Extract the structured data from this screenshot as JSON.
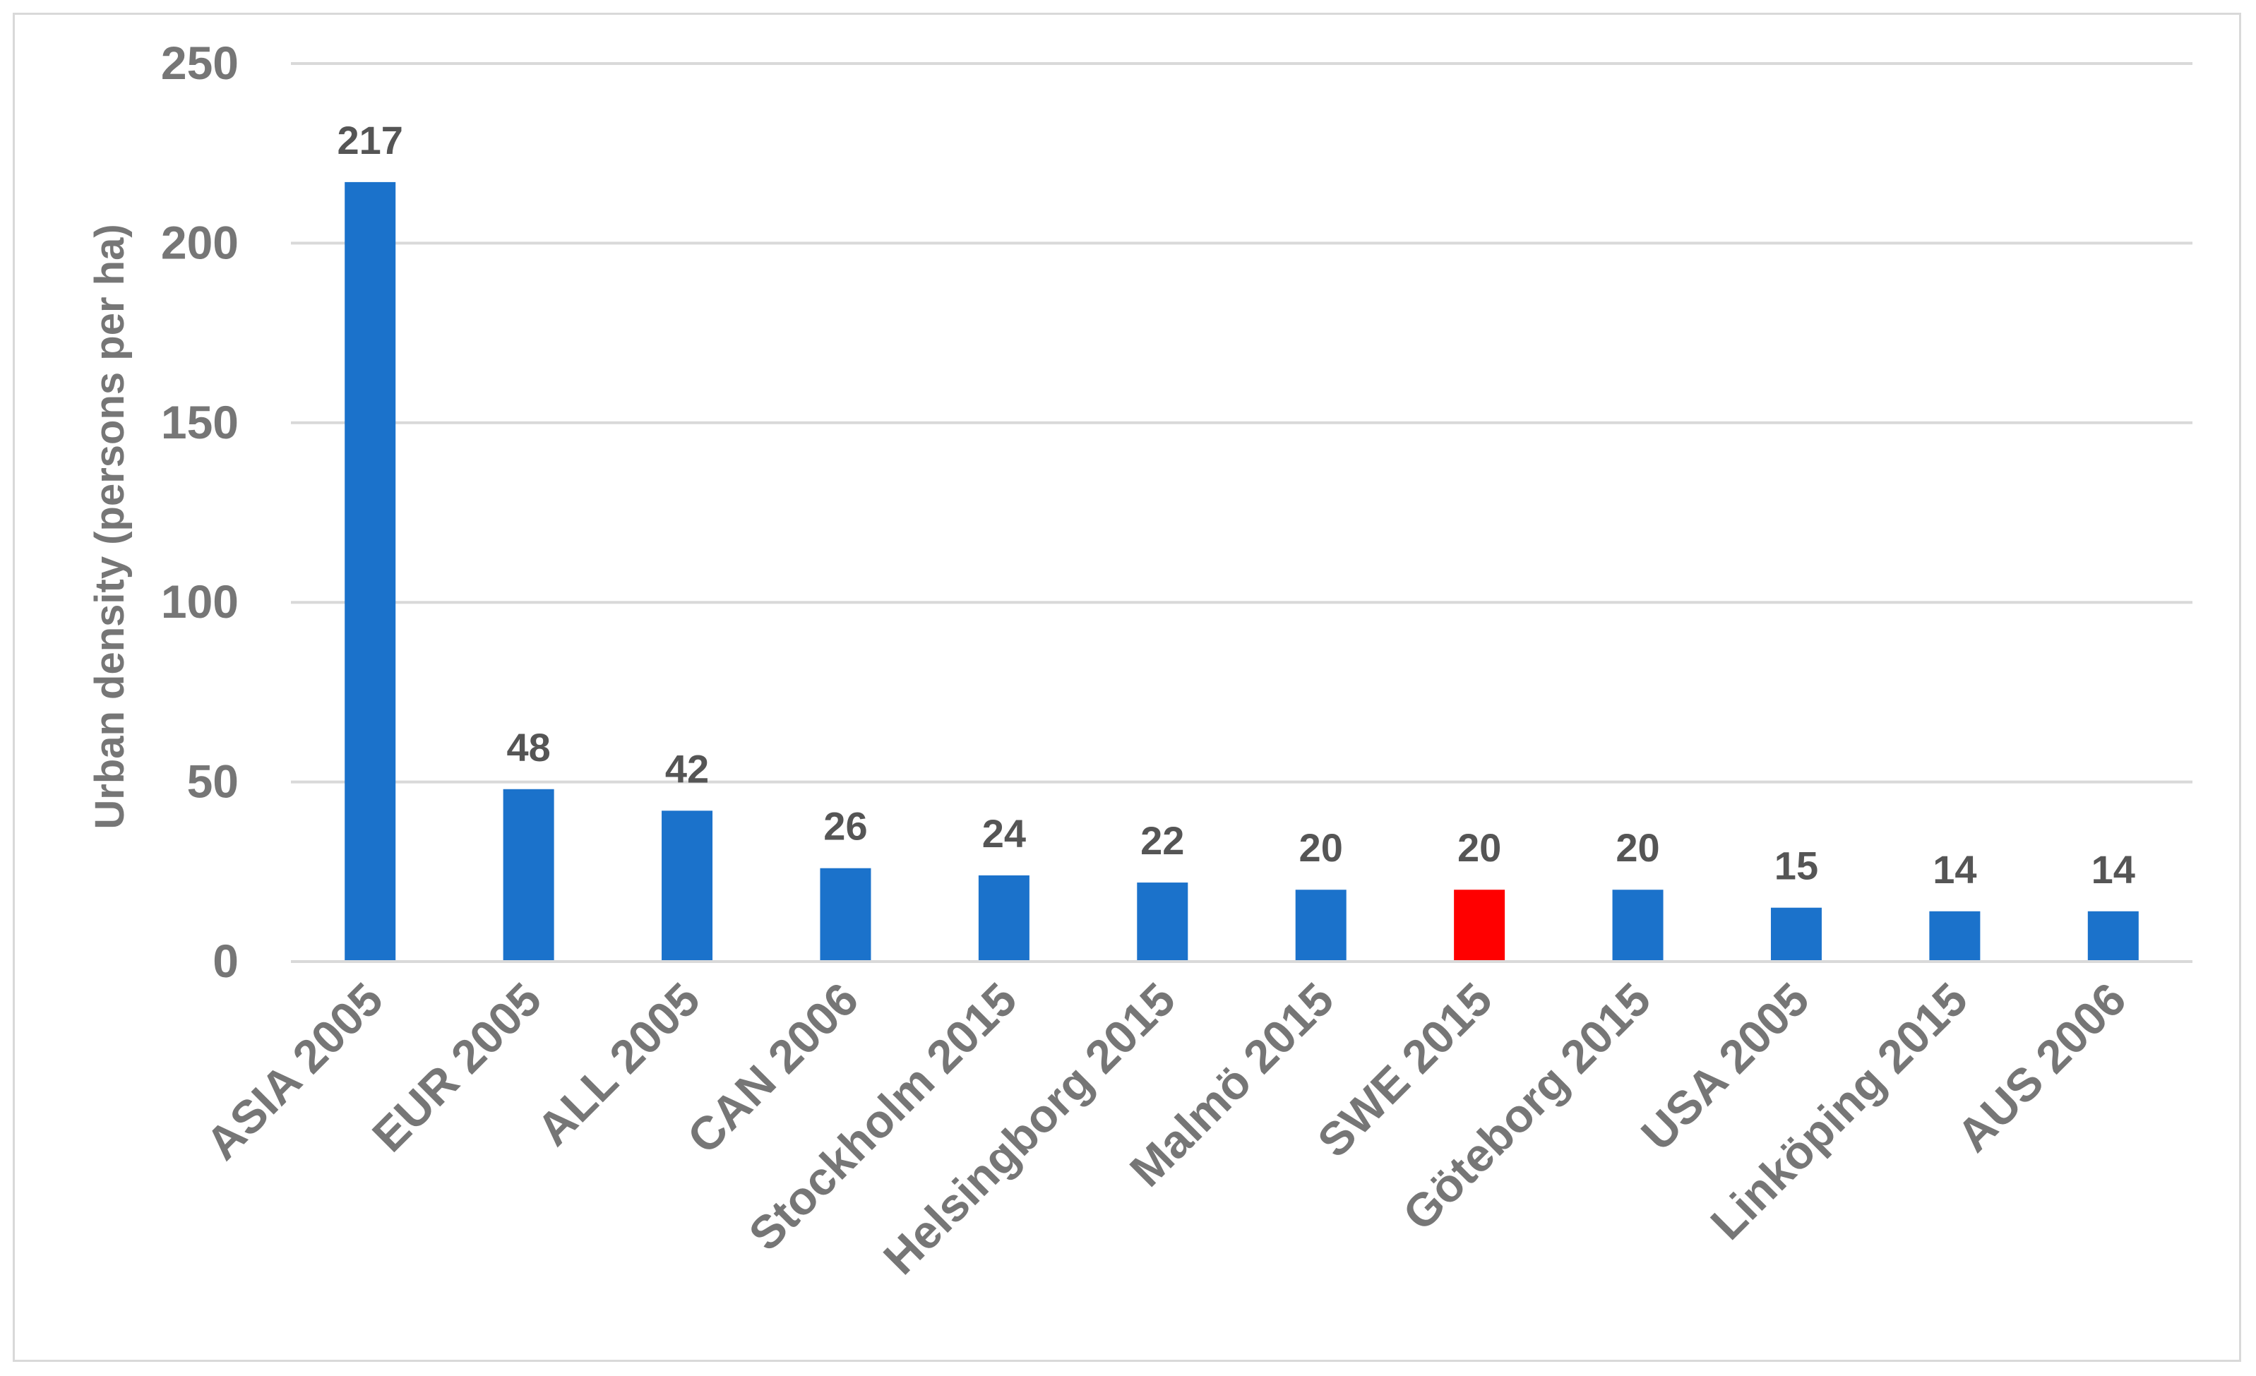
{
  "chart_data": {
    "type": "bar",
    "title": "",
    "xlabel": "",
    "ylabel": "Urban density (persons per ha)",
    "ylim": [
      0,
      250
    ],
    "yticks": [
      0,
      50,
      100,
      150,
      200,
      250
    ],
    "grid": true,
    "legend": "none",
    "categories": [
      "ASIA 2005",
      "EUR 2005",
      "ALL 2005",
      "CAN 2006",
      "Stockholm 2015",
      "Helsingborg 2015",
      "Malmö 2015",
      "SWE 2015",
      "Göteborg 2015",
      "USA 2005",
      "Linköping 2015",
      "AUS 2006"
    ],
    "values": [
      217,
      48,
      42,
      26,
      24,
      22,
      20,
      20,
      20,
      15,
      14,
      14
    ],
    "data_labels": [
      "217",
      "48",
      "42",
      "26",
      "24",
      "22",
      "20",
      "20",
      "20",
      "15",
      "14",
      "14"
    ],
    "bar_color": "#1b72cb",
    "highlight_color": "#ff0000",
    "highlight_category": "SWE 2015"
  }
}
